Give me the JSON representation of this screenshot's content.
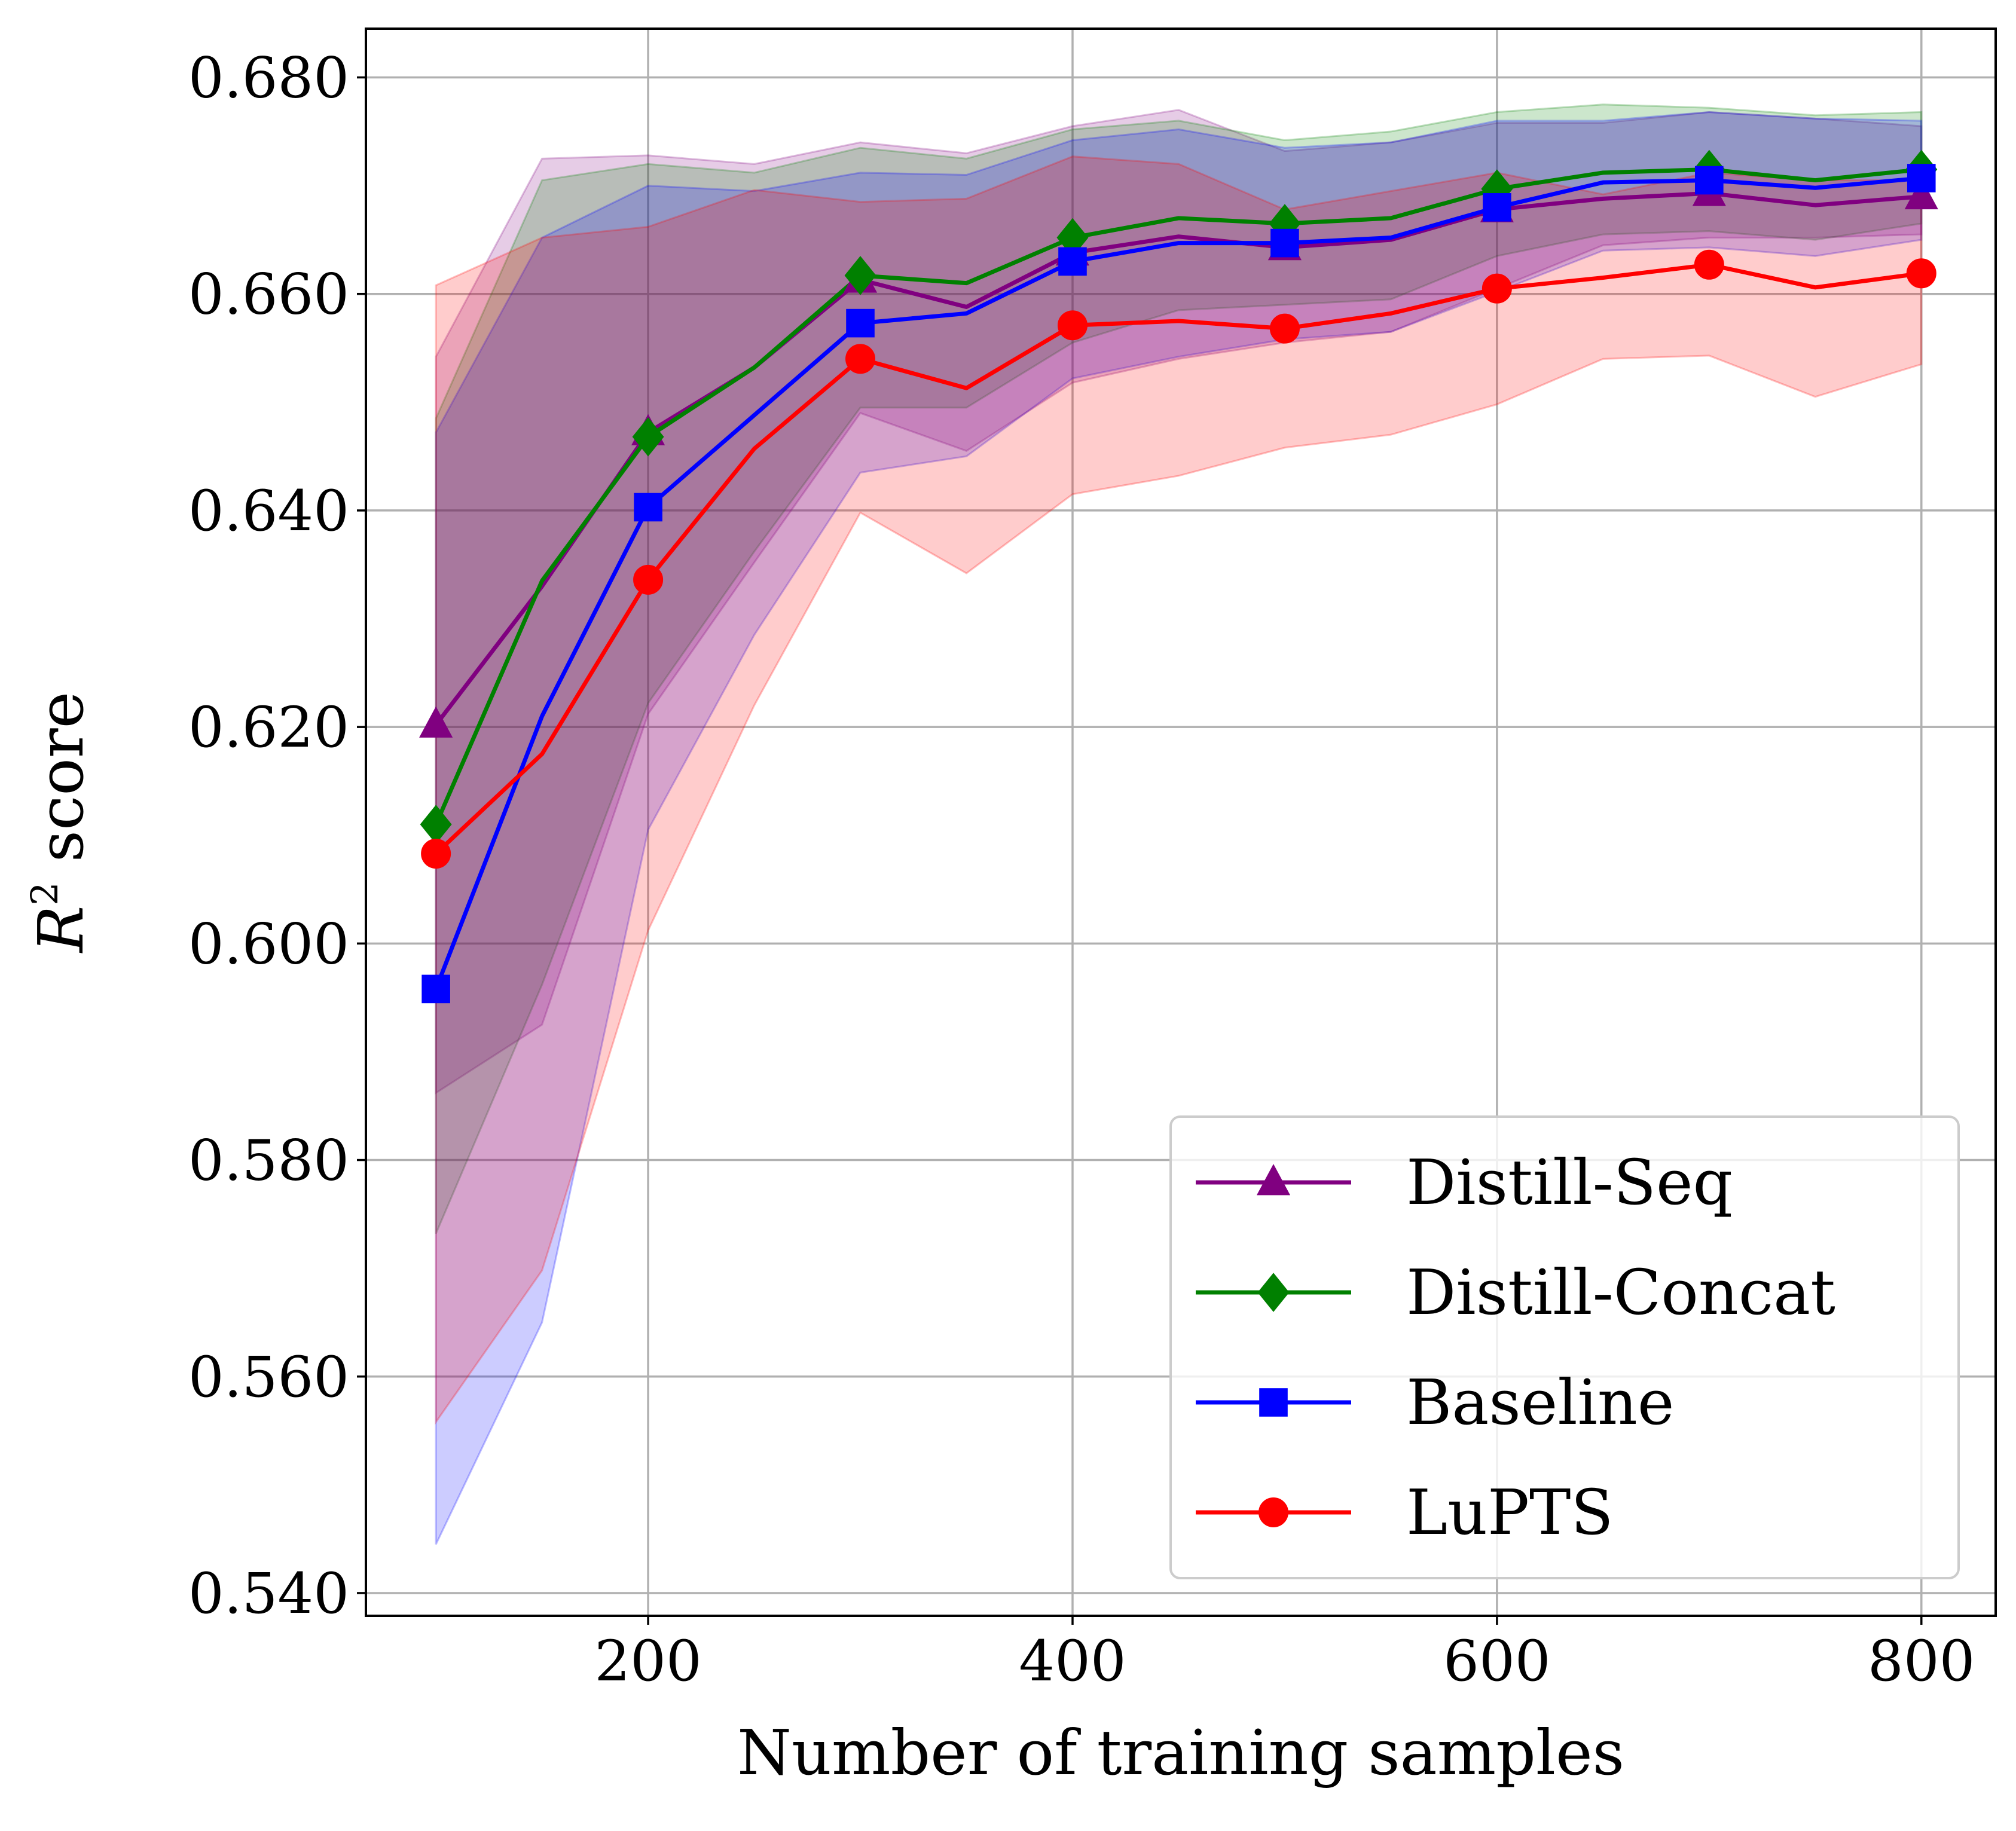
{
  "chart_data": {
    "type": "line",
    "title": "",
    "xlabel": "Number of training samples",
    "ylabel_base": "R",
    "ylabel_sup": "2",
    "ylabel_rest": " score",
    "xlim": [
      67,
      835
    ],
    "ylim": [
      0.5379,
      0.6845
    ],
    "xticks": [
      200,
      400,
      600,
      800
    ],
    "xtick_labels": [
      "200",
      "400",
      "600",
      "800"
    ],
    "yticks": [
      0.54,
      0.56,
      0.58,
      0.6,
      0.62,
      0.64,
      0.66,
      0.68
    ],
    "ytick_labels": [
      "0.540",
      "0.560",
      "0.580",
      "0.600",
      "0.620",
      "0.640",
      "0.660",
      "0.680"
    ],
    "grid": true,
    "legend_position": "bottom-right",
    "x": [
      100,
      150,
      200,
      250,
      300,
      350,
      400,
      450,
      500,
      550,
      600,
      650,
      700,
      750,
      800
    ],
    "series": [
      {
        "name": "Distill-Seq",
        "color": "#800080",
        "marker": "triangle",
        "values": [
          0.6202,
          0.633,
          0.6472,
          0.6532,
          0.6613,
          0.6588,
          0.6638,
          0.6653,
          0.6643,
          0.665,
          0.6678,
          0.6688,
          0.6693,
          0.6682,
          0.669
        ],
        "lower": [
          0.5862,
          0.5925,
          0.6212,
          0.6352,
          0.649,
          0.6455,
          0.6518,
          0.654,
          0.6555,
          0.6565,
          0.6605,
          0.6645,
          0.6652,
          0.6652,
          0.6655
        ],
        "upper": [
          0.6542,
          0.6725,
          0.6728,
          0.672,
          0.674,
          0.673,
          0.6755,
          0.677,
          0.6732,
          0.674,
          0.6758,
          0.6758,
          0.6768,
          0.6762,
          0.6755
        ]
      },
      {
        "name": "Distill-Concat",
        "color": "#008000",
        "marker": "diamond",
        "values": [
          0.611,
          0.6335,
          0.6468,
          0.6532,
          0.6617,
          0.661,
          0.6652,
          0.667,
          0.6665,
          0.667,
          0.6697,
          0.6712,
          0.6715,
          0.6705,
          0.6715
        ],
        "lower": [
          0.5732,
          0.5962,
          0.6222,
          0.6362,
          0.6495,
          0.6495,
          0.6555,
          0.6585,
          0.659,
          0.6595,
          0.6635,
          0.6655,
          0.6658,
          0.665,
          0.6665
        ],
        "upper": [
          0.6485,
          0.6705,
          0.672,
          0.6712,
          0.6735,
          0.6725,
          0.6752,
          0.676,
          0.6742,
          0.675,
          0.6768,
          0.6775,
          0.6772,
          0.6765,
          0.6768
        ]
      },
      {
        "name": "Baseline",
        "color": "#0000ff",
        "marker": "square",
        "values": [
          0.5958,
          0.621,
          0.6403,
          0.6488,
          0.6573,
          0.6582,
          0.663,
          0.6647,
          0.6647,
          0.6652,
          0.668,
          0.6703,
          0.6705,
          0.6698,
          0.6707
        ],
        "lower": [
          0.5445,
          0.565,
          0.6105,
          0.6285,
          0.6435,
          0.645,
          0.6522,
          0.6542,
          0.6558,
          0.6565,
          0.6602,
          0.664,
          0.6643,
          0.6635,
          0.665
        ],
        "upper": [
          0.6472,
          0.6652,
          0.67,
          0.6695,
          0.6712,
          0.671,
          0.6742,
          0.6752,
          0.6735,
          0.674,
          0.676,
          0.676,
          0.6768,
          0.6762,
          0.676
        ]
      },
      {
        "name": "LuPTS",
        "color": "#ff0000",
        "marker": "circle",
        "values": [
          0.6083,
          0.6175,
          0.6336,
          0.6457,
          0.654,
          0.6513,
          0.6571,
          0.6575,
          0.6568,
          0.6582,
          0.6605,
          0.6615,
          0.6627,
          0.6606,
          0.6619
        ],
        "lower": [
          0.5558,
          0.5698,
          0.6012,
          0.622,
          0.6398,
          0.6342,
          0.6415,
          0.6432,
          0.6458,
          0.647,
          0.6498,
          0.654,
          0.6543,
          0.6505,
          0.6535
        ],
        "upper": [
          0.6608,
          0.6652,
          0.6662,
          0.6696,
          0.6685,
          0.6688,
          0.6727,
          0.672,
          0.6678,
          0.6695,
          0.6712,
          0.6692,
          0.6712,
          0.6705,
          0.6705
        ]
      }
    ]
  }
}
